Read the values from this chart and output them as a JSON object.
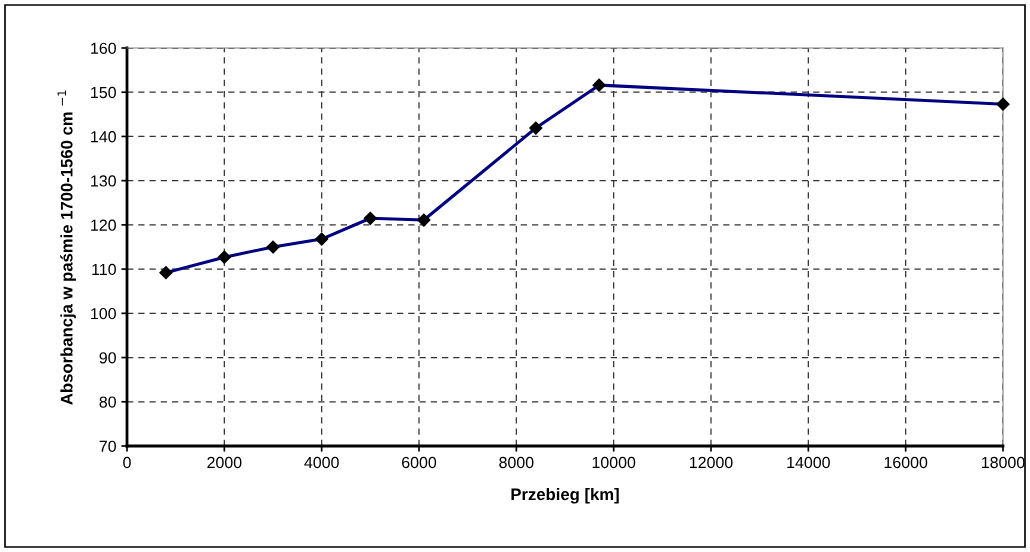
{
  "chart_data": {
    "type": "line",
    "xlabel": "Przebieg [km]",
    "ylabel": "Absorbancja w paśmie 1700-1560 cm $^{−1}$",
    "x": [
      800,
      2000,
      3000,
      4000,
      5000,
      6100,
      8400,
      9700,
      18000
    ],
    "series": [
      {
        "color": "#000080",
        "values": [
          109.2,
          112.7,
          115.0,
          116.8,
          121.5,
          121.1,
          141.9,
          151.6,
          147.3
        ]
      }
    ],
    "xlim": [
      0,
      18000
    ],
    "xticks": [
      0,
      2000,
      4000,
      6000,
      8000,
      10000,
      12000,
      14000,
      16000,
      18000
    ],
    "ylim": [
      70,
      160
    ],
    "yticks": [
      70,
      80,
      90,
      100,
      110,
      120,
      130,
      140,
      150,
      160
    ],
    "grid": true,
    "marker": "diamond",
    "line_style": "solid"
  }
}
